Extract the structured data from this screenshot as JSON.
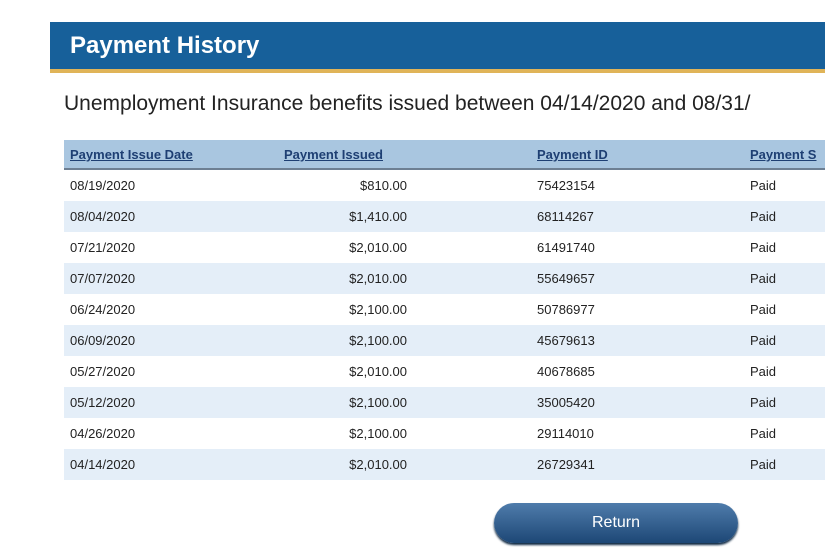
{
  "header": {
    "title": "Payment History"
  },
  "subtitle": "Unemployment Insurance benefits issued between 04/14/2020 and 08/31/",
  "table": {
    "columns": [
      "Payment Issue Date",
      "Payment Issued",
      "Payment ID",
      "Payment S"
    ],
    "rows": [
      [
        "08/19/2020",
        "$810.00",
        "75423154",
        "Paid"
      ],
      [
        "08/04/2020",
        "$1,410.00",
        "68114267",
        "Paid"
      ],
      [
        "07/21/2020",
        "$2,010.00",
        "61491740",
        "Paid"
      ],
      [
        "07/07/2020",
        "$2,010.00",
        "55649657",
        "Paid"
      ],
      [
        "06/24/2020",
        "$2,100.00",
        "50786977",
        "Paid"
      ],
      [
        "06/09/2020",
        "$2,100.00",
        "45679613",
        "Paid"
      ],
      [
        "05/27/2020",
        "$2,010.00",
        "40678685",
        "Paid"
      ],
      [
        "05/12/2020",
        "$2,100.00",
        "35005420",
        "Paid"
      ],
      [
        "04/26/2020",
        "$2,100.00",
        "29114010",
        "Paid"
      ],
      [
        "04/14/2020",
        "$2,010.00",
        "26729341",
        "Paid"
      ]
    ]
  },
  "button": {
    "label": "Return"
  }
}
